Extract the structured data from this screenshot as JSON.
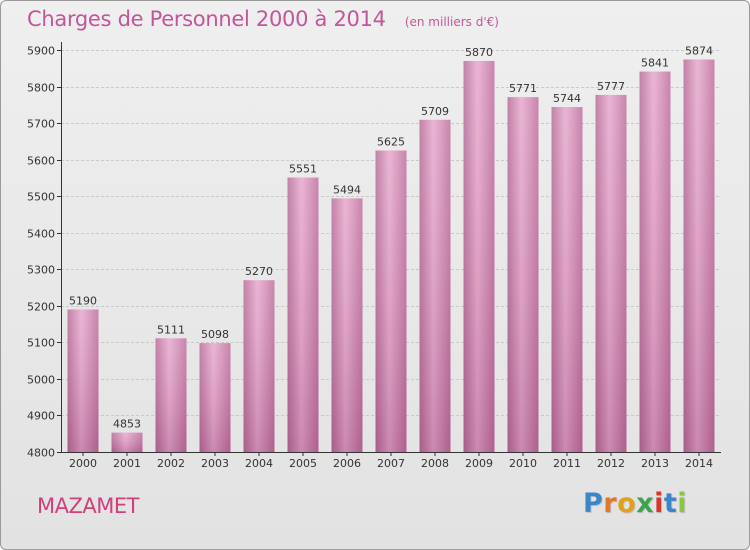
{
  "chart_data": {
    "type": "bar",
    "title": "Charges de Personnel 2000 à 2014",
    "subtitle": "(en milliers d'€)",
    "categories": [
      "2000",
      "2001",
      "2002",
      "2003",
      "2004",
      "2005",
      "2006",
      "2007",
      "2008",
      "2009",
      "2010",
      "2011",
      "2012",
      "2013",
      "2014"
    ],
    "values": [
      5190,
      4853,
      5111,
      5098,
      5270,
      5551,
      5494,
      5625,
      5709,
      5870,
      5771,
      5744,
      5777,
      5841,
      5874
    ],
    "ylim": [
      4800,
      5900
    ],
    "yticks": [
      4800,
      4900,
      5000,
      5100,
      5200,
      5300,
      5400,
      5500,
      5600,
      5700,
      5800,
      5900
    ],
    "grid": true,
    "bar_color": "#c77ba6",
    "xlabel": "",
    "ylabel": ""
  },
  "footer": {
    "city": "MAZAMET",
    "brand_letters": [
      "P",
      "r",
      "o",
      "x",
      "i",
      "t",
      "i"
    ],
    "brand_colors": [
      "#3a86c8",
      "#e07a2a",
      "#e0a020",
      "#3fa34d",
      "#d9352b",
      "#3a86c8",
      "#8cc63f"
    ]
  }
}
